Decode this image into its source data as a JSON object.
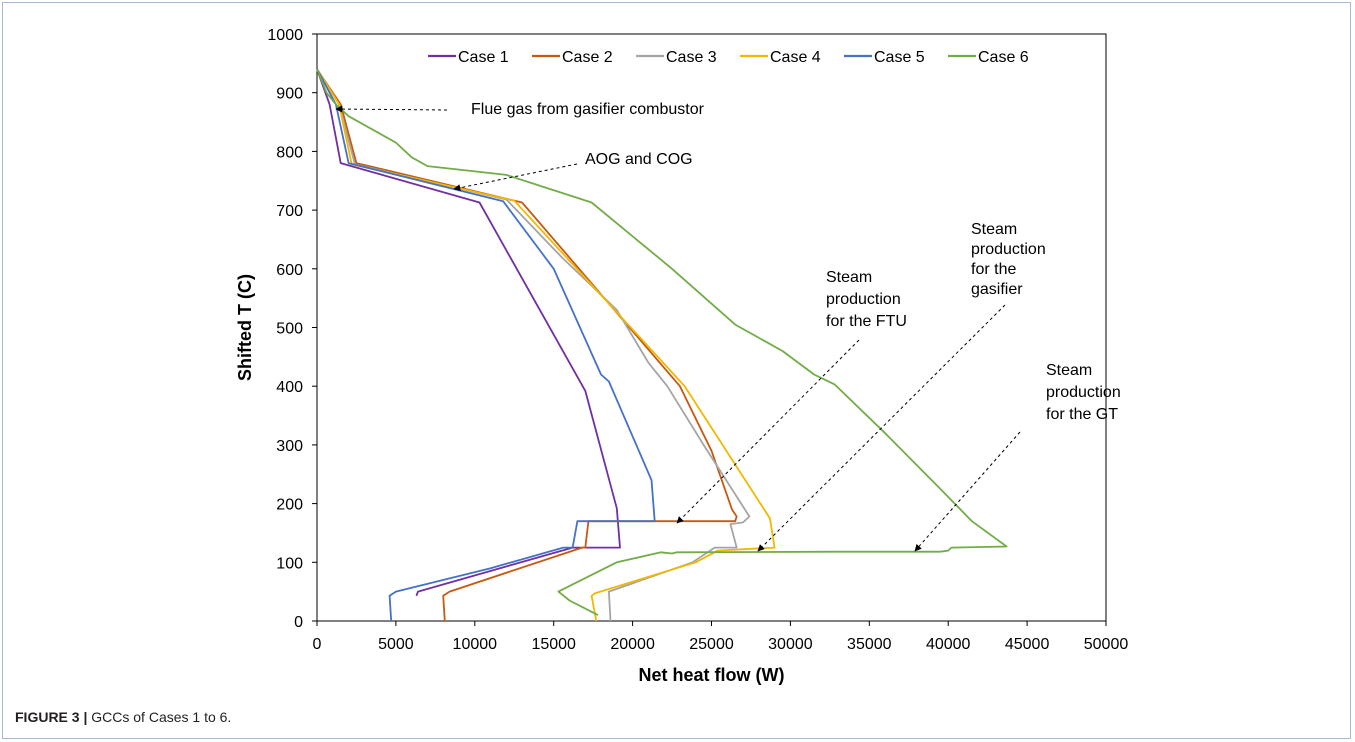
{
  "chart_data": {
    "type": "line",
    "title": "",
    "xlabel": "Net heat flow (W)",
    "ylabel": "Shifted T (C)",
    "xlim": [
      0,
      50000
    ],
    "ylim": [
      0,
      1000
    ],
    "x_ticks": [
      0,
      5000,
      10000,
      15000,
      20000,
      25000,
      30000,
      35000,
      40000,
      45000,
      50000
    ],
    "y_ticks": [
      0,
      100,
      200,
      300,
      400,
      500,
      600,
      700,
      800,
      900,
      1000
    ],
    "grid": false,
    "legend_position": "top",
    "series": [
      {
        "name": "Case 1",
        "color": "#7030a0",
        "points": [
          [
            0,
            940
          ],
          [
            800,
            880
          ],
          [
            1500,
            780
          ],
          [
            10300,
            713
          ],
          [
            17000,
            392
          ],
          [
            19000,
            192
          ],
          [
            19200,
            125
          ],
          [
            16200,
            125
          ],
          [
            6400,
            50
          ],
          [
            6300,
            43
          ]
        ]
      },
      {
        "name": "Case 2",
        "color": "#c55a11",
        "points": [
          [
            0,
            940
          ],
          [
            1500,
            880
          ],
          [
            2500,
            780
          ],
          [
            13000,
            713
          ],
          [
            23000,
            400
          ],
          [
            25000,
            290
          ],
          [
            26300,
            190
          ],
          [
            26600,
            178
          ],
          [
            26500,
            170
          ],
          [
            17200,
            170
          ],
          [
            17000,
            125
          ],
          [
            16800,
            125
          ],
          [
            8400,
            50
          ],
          [
            8000,
            43
          ],
          [
            8100,
            0
          ]
        ]
      },
      {
        "name": "Case 3",
        "color": "#a5a5a5",
        "points": [
          [
            0,
            940
          ],
          [
            1400,
            880
          ],
          [
            2400,
            778
          ],
          [
            12000,
            718
          ],
          [
            15500,
            620
          ],
          [
            19000,
            530
          ],
          [
            21000,
            440
          ],
          [
            22200,
            400
          ],
          [
            24500,
            300
          ],
          [
            27400,
            178
          ],
          [
            27000,
            168
          ],
          [
            26200,
            165
          ],
          [
            26600,
            125
          ],
          [
            25200,
            125
          ],
          [
            23800,
            100
          ],
          [
            18500,
            50
          ],
          [
            18600,
            0
          ]
        ]
      },
      {
        "name": "Case 4",
        "color": "#f1b800",
        "points": [
          [
            0,
            940
          ],
          [
            1400,
            880
          ],
          [
            2200,
            778
          ],
          [
            12500,
            716
          ],
          [
            23300,
            400
          ],
          [
            28700,
            175
          ],
          [
            29000,
            125
          ],
          [
            25400,
            120
          ],
          [
            24000,
            100
          ],
          [
            17600,
            47
          ],
          [
            17400,
            43
          ],
          [
            17700,
            0
          ]
        ]
      },
      {
        "name": "Case 5",
        "color": "#4472c4",
        "points": [
          [
            0,
            940
          ],
          [
            1200,
            880
          ],
          [
            2000,
            780
          ],
          [
            11800,
            715
          ],
          [
            15000,
            600
          ],
          [
            18000,
            420
          ],
          [
            18500,
            408
          ],
          [
            21200,
            240
          ],
          [
            21400,
            170
          ],
          [
            16500,
            170
          ],
          [
            16200,
            125
          ],
          [
            15600,
            125
          ],
          [
            11000,
            90
          ],
          [
            5000,
            50
          ],
          [
            4600,
            43
          ],
          [
            4700,
            0
          ]
        ]
      },
      {
        "name": "Case 6",
        "color": "#70ad47",
        "points": [
          [
            0,
            940
          ],
          [
            600,
            900
          ],
          [
            1200,
            880
          ],
          [
            2000,
            860
          ],
          [
            5000,
            815
          ],
          [
            6000,
            790
          ],
          [
            7000,
            775
          ],
          [
            12000,
            760
          ],
          [
            17400,
            713
          ],
          [
            22500,
            600
          ],
          [
            26500,
            505
          ],
          [
            29500,
            460
          ],
          [
            31500,
            420
          ],
          [
            32800,
            403
          ],
          [
            36000,
            320
          ],
          [
            39500,
            225
          ],
          [
            41500,
            170
          ],
          [
            43700,
            127
          ],
          [
            40200,
            125
          ],
          [
            40000,
            120
          ],
          [
            39500,
            118
          ],
          [
            33000,
            118
          ],
          [
            23000,
            117
          ],
          [
            22800,
            117
          ],
          [
            22500,
            115
          ],
          [
            21800,
            117
          ],
          [
            19000,
            100
          ],
          [
            15300,
            50
          ],
          [
            16000,
            35
          ],
          [
            17800,
            10
          ]
        ]
      }
    ],
    "annotations": [
      {
        "id": "flue-gas",
        "lines": [
          "Flue gas from gasifier combustor"
        ]
      },
      {
        "id": "aog-cog",
        "lines": [
          "AOG and COG"
        ]
      },
      {
        "id": "steam-ftu",
        "lines": [
          "Steam",
          "production",
          "for the FTU"
        ]
      },
      {
        "id": "steam-gasifier",
        "lines": [
          "Steam",
          "production",
          "for the",
          "gasifier"
        ]
      },
      {
        "id": "steam-gt",
        "lines": [
          "Steam",
          "production",
          "for the GT"
        ]
      }
    ]
  },
  "caption": {
    "label": "FIGURE 3 |",
    "text": " GCCs of Cases 1 to 6."
  }
}
